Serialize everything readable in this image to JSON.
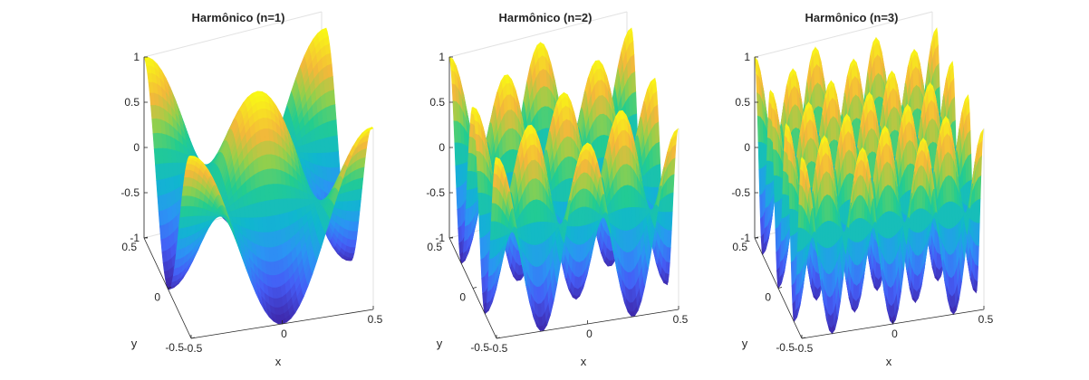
{
  "figure": {
    "background": "#ffffff"
  },
  "chart_data": [
    {
      "type": "surface",
      "title": "Harmônico (n=1)",
      "harmonic": 1,
      "xlabel": "x",
      "ylabel": "y",
      "zlabel": "",
      "xlim": [
        -0.5,
        0.5
      ],
      "ylim": [
        -0.5,
        0.5
      ],
      "zlim": [
        -1,
        1
      ],
      "x_ticks": [
        "-0.5",
        "0",
        "0.5"
      ],
      "y_ticks": [
        "-0.5",
        "0",
        "0.5"
      ],
      "z_ticks": [
        "-1",
        "-0.5",
        "0",
        "0.5",
        "1"
      ],
      "colormap": "parula",
      "grid": false,
      "box": true
    },
    {
      "type": "surface",
      "title": "Harmônico (n=2)",
      "harmonic": 2,
      "xlabel": "x",
      "ylabel": "y",
      "zlabel": "",
      "xlim": [
        -0.5,
        0.5
      ],
      "ylim": [
        -0.5,
        0.5
      ],
      "zlim": [
        -1,
        1
      ],
      "x_ticks": [
        "-0.5",
        "0",
        "0.5"
      ],
      "y_ticks": [
        "-0.5",
        "0",
        "0.5"
      ],
      "z_ticks": [
        "-1",
        "-0.5",
        "0",
        "0.5",
        "1"
      ],
      "colormap": "parula",
      "grid": false,
      "box": true
    },
    {
      "type": "surface",
      "title": "Harmônico (n=3)",
      "harmonic": 3,
      "xlabel": "x",
      "ylabel": "y",
      "zlabel": "",
      "xlim": [
        -0.5,
        0.5
      ],
      "ylim": [
        -0.5,
        0.5
      ],
      "zlim": [
        -1,
        1
      ],
      "x_ticks": [
        "-0.5",
        "0",
        "0.5"
      ],
      "y_ticks": [
        "-0.5",
        "0",
        "0.5"
      ],
      "z_ticks": [
        "-1",
        "-0.5",
        "0",
        "0.5",
        "1"
      ],
      "colormap": "parula",
      "grid": false,
      "box": true
    }
  ]
}
